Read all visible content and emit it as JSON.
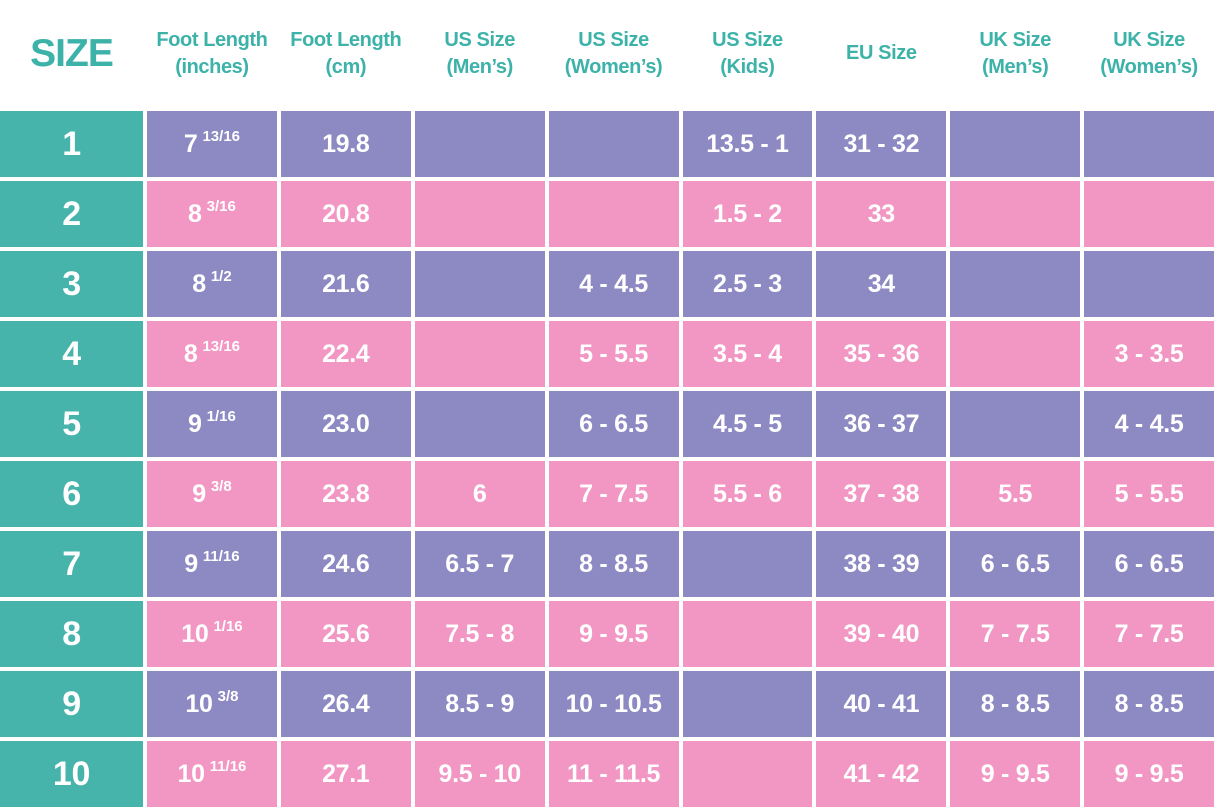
{
  "chart_data": {
    "type": "table",
    "columns": [
      {
        "id": "size",
        "line1": "SIZE",
        "line2": ""
      },
      {
        "id": "foot-length-inches",
        "line1": "Foot Length",
        "line2": "(inches)"
      },
      {
        "id": "foot-length-cm",
        "line1": "Foot Length",
        "line2": "(cm)"
      },
      {
        "id": "us-size-mens",
        "line1": "US Size",
        "line2": "(Men’s)"
      },
      {
        "id": "us-size-womens",
        "line1": "US Size",
        "line2": "(Women’s)"
      },
      {
        "id": "us-size-kids",
        "line1": "US Size",
        "line2": "(Kids)"
      },
      {
        "id": "eu-size",
        "line1": "EU Size",
        "line2": ""
      },
      {
        "id": "uk-size-mens",
        "line1": "UK Size",
        "line2": "(Men’s)"
      },
      {
        "id": "uk-size-womens",
        "line1": "UK Size",
        "line2": "(Women’s)"
      }
    ],
    "rows": [
      {
        "size": "1",
        "inches_whole": "7",
        "inches_fraction": "13/16",
        "cm": "19.8",
        "us_men": "",
        "us_women": "",
        "us_kids": "13.5 - 1",
        "eu": "31 - 32",
        "uk_men": "",
        "uk_women": ""
      },
      {
        "size": "2",
        "inches_whole": "8",
        "inches_fraction": "3/16",
        "cm": "20.8",
        "us_men": "",
        "us_women": "",
        "us_kids": "1.5 - 2",
        "eu": "33",
        "uk_men": "",
        "uk_women": ""
      },
      {
        "size": "3",
        "inches_whole": "8",
        "inches_fraction": "1/2",
        "cm": "21.6",
        "us_men": "",
        "us_women": "4 - 4.5",
        "us_kids": "2.5 - 3",
        "eu": "34",
        "uk_men": "",
        "uk_women": ""
      },
      {
        "size": "4",
        "inches_whole": "8",
        "inches_fraction": "13/16",
        "cm": "22.4",
        "us_men": "",
        "us_women": "5 - 5.5",
        "us_kids": "3.5 - 4",
        "eu": "35 - 36",
        "uk_men": "",
        "uk_women": "3 - 3.5"
      },
      {
        "size": "5",
        "inches_whole": "9",
        "inches_fraction": "1/16",
        "cm": "23.0",
        "us_men": "",
        "us_women": "6 - 6.5",
        "us_kids": "4.5 - 5",
        "eu": "36 - 37",
        "uk_men": "",
        "uk_women": "4 - 4.5"
      },
      {
        "size": "6",
        "inches_whole": "9",
        "inches_fraction": "3/8",
        "cm": "23.8",
        "us_men": "6",
        "us_women": "7 - 7.5",
        "us_kids": "5.5 - 6",
        "eu": "37 - 38",
        "uk_men": "5.5",
        "uk_women": "5 - 5.5"
      },
      {
        "size": "7",
        "inches_whole": "9",
        "inches_fraction": "11/16",
        "cm": "24.6",
        "us_men": "6.5 - 7",
        "us_women": "8 - 8.5",
        "us_kids": "",
        "eu": "38 - 39",
        "uk_men": "6 - 6.5",
        "uk_women": "6 - 6.5"
      },
      {
        "size": "8",
        "inches_whole": "10",
        "inches_fraction": "1/16",
        "cm": "25.6",
        "us_men": "7.5 - 8",
        "us_women": "9 - 9.5",
        "us_kids": "",
        "eu": "39 - 40",
        "uk_men": "7 - 7.5",
        "uk_women": "7 - 7.5"
      },
      {
        "size": "9",
        "inches_whole": "10",
        "inches_fraction": "3/8",
        "cm": "26.4",
        "us_men": "8.5 - 9",
        "us_women": "10 - 10.5",
        "us_kids": "",
        "eu": "40 - 41",
        "uk_men": "8 - 8.5",
        "uk_women": "8 - 8.5"
      },
      {
        "size": "10",
        "inches_whole": "10",
        "inches_fraction": "11/16",
        "cm": "27.1",
        "us_men": "9.5 - 10",
        "us_women": "11 - 11.5",
        "us_kids": "",
        "eu": "41 - 42",
        "uk_men": "9 - 9.5",
        "uk_women": "9 - 9.5"
      }
    ]
  },
  "colors": {
    "teal": "#46B4AB",
    "purple": "#8D89C2",
    "pink": "#F297C3",
    "header_text": "#3CB2A9",
    "cell_text": "#FFFFFF",
    "background": "#FFFFFF"
  }
}
